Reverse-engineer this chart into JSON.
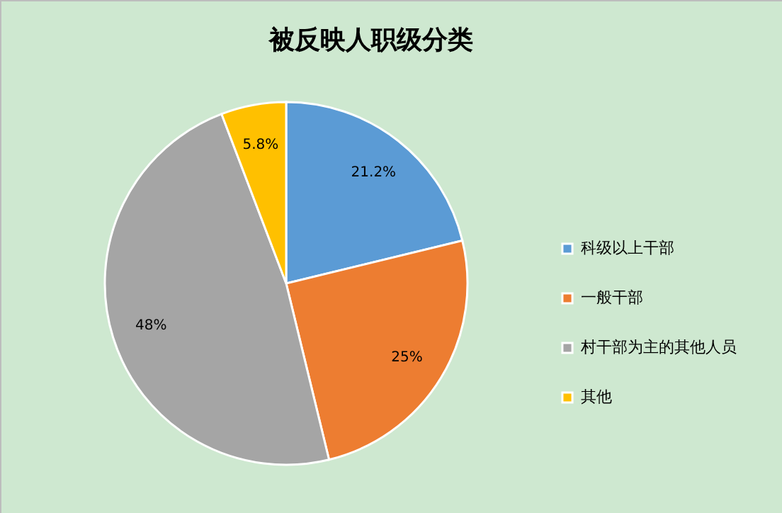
{
  "chart_data": {
    "type": "pie",
    "title": "被反映人职级分类",
    "categories": [
      "科级以上干部",
      "一般干部",
      "村干部为主的其他人员",
      "其他"
    ],
    "values": [
      21.2,
      25,
      48,
      5.8
    ],
    "colors": [
      "#5b9bd5",
      "#ed7d31",
      "#a5a5a5",
      "#ffc000"
    ],
    "value_labels": [
      "21.2%",
      "25%",
      "48%",
      "5.8%"
    ],
    "legend": "right"
  }
}
